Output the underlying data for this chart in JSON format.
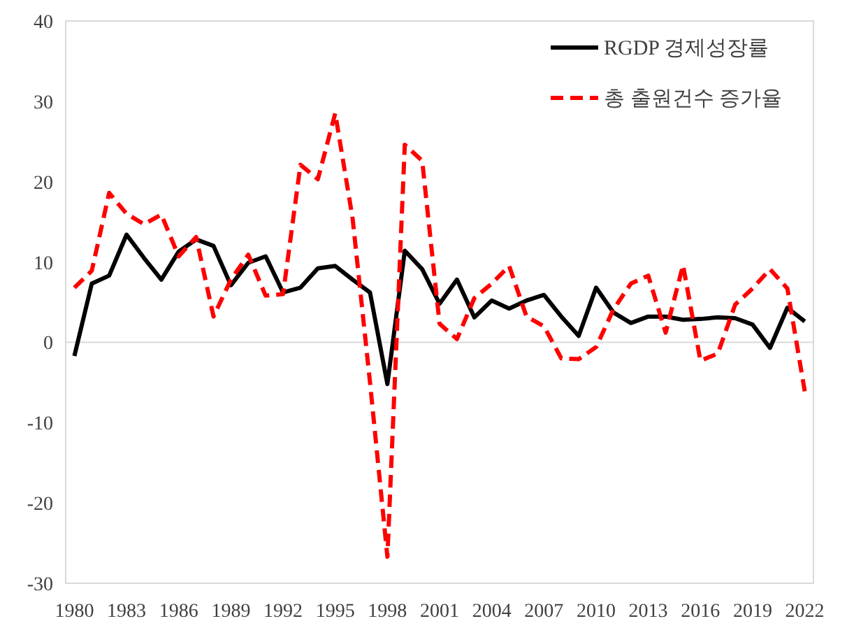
{
  "chart_data": {
    "type": "line",
    "x": [
      1980,
      1981,
      1982,
      1983,
      1984,
      1985,
      1986,
      1987,
      1988,
      1989,
      1990,
      1991,
      1992,
      1993,
      1994,
      1995,
      1996,
      1997,
      1998,
      1999,
      2000,
      2001,
      2002,
      2003,
      2004,
      2005,
      2006,
      2007,
      2008,
      2009,
      2010,
      2011,
      2012,
      2013,
      2014,
      2015,
      2016,
      2017,
      2018,
      2019,
      2020,
      2021,
      2022
    ],
    "series": [
      {
        "name": "RGDP 경제성장률",
        "color": "#000000",
        "line_style": "solid",
        "values": [
          -1.7,
          7.3,
          8.3,
          13.4,
          10.5,
          7.8,
          11.3,
          12.8,
          12.0,
          7.1,
          9.9,
          10.7,
          6.2,
          6.8,
          9.2,
          9.5,
          7.8,
          6.2,
          -5.2,
          11.4,
          9.1,
          4.8,
          7.8,
          3.1,
          5.2,
          4.2,
          5.2,
          5.9,
          3.2,
          0.8,
          6.8,
          3.7,
          2.4,
          3.2,
          3.2,
          2.8,
          2.9,
          3.1,
          3.0,
          2.2,
          -0.7,
          4.3,
          2.6
        ]
      },
      {
        "name": "총 출원건수 증가율",
        "color": "#ff0000",
        "line_style": "dashed",
        "values": [
          6.8,
          8.9,
          18.6,
          16.0,
          14.7,
          15.9,
          10.7,
          13.1,
          3.2,
          7.8,
          10.9,
          5.8,
          6.0,
          22.1,
          20.3,
          28.5,
          15.4,
          -5.0,
          -26.7,
          24.6,
          22.6,
          2.3,
          0.4,
          5.5,
          7.3,
          9.5,
          3.2,
          2.0,
          -2.0,
          -2.1,
          -0.6,
          4.1,
          7.3,
          8.3,
          1.2,
          9.6,
          -2.3,
          -1.4,
          4.7,
          6.7,
          9.1,
          6.7,
          -6.1
        ]
      }
    ],
    "xlim": [
      1979.5,
      2022.5
    ],
    "xticks": [
      1980,
      1983,
      1986,
      1989,
      1992,
      1995,
      1998,
      2001,
      2004,
      2007,
      2010,
      2013,
      2016,
      2019,
      2022
    ],
    "ylim": [
      -30,
      40
    ],
    "yticks": [
      -30,
      -20,
      -10,
      0,
      10,
      20,
      30,
      40
    ],
    "ref_lines": [
      {
        "axis": "y",
        "value": 0,
        "color": "#d9d9d9"
      }
    ],
    "grid": false,
    "legend": "top right"
  }
}
